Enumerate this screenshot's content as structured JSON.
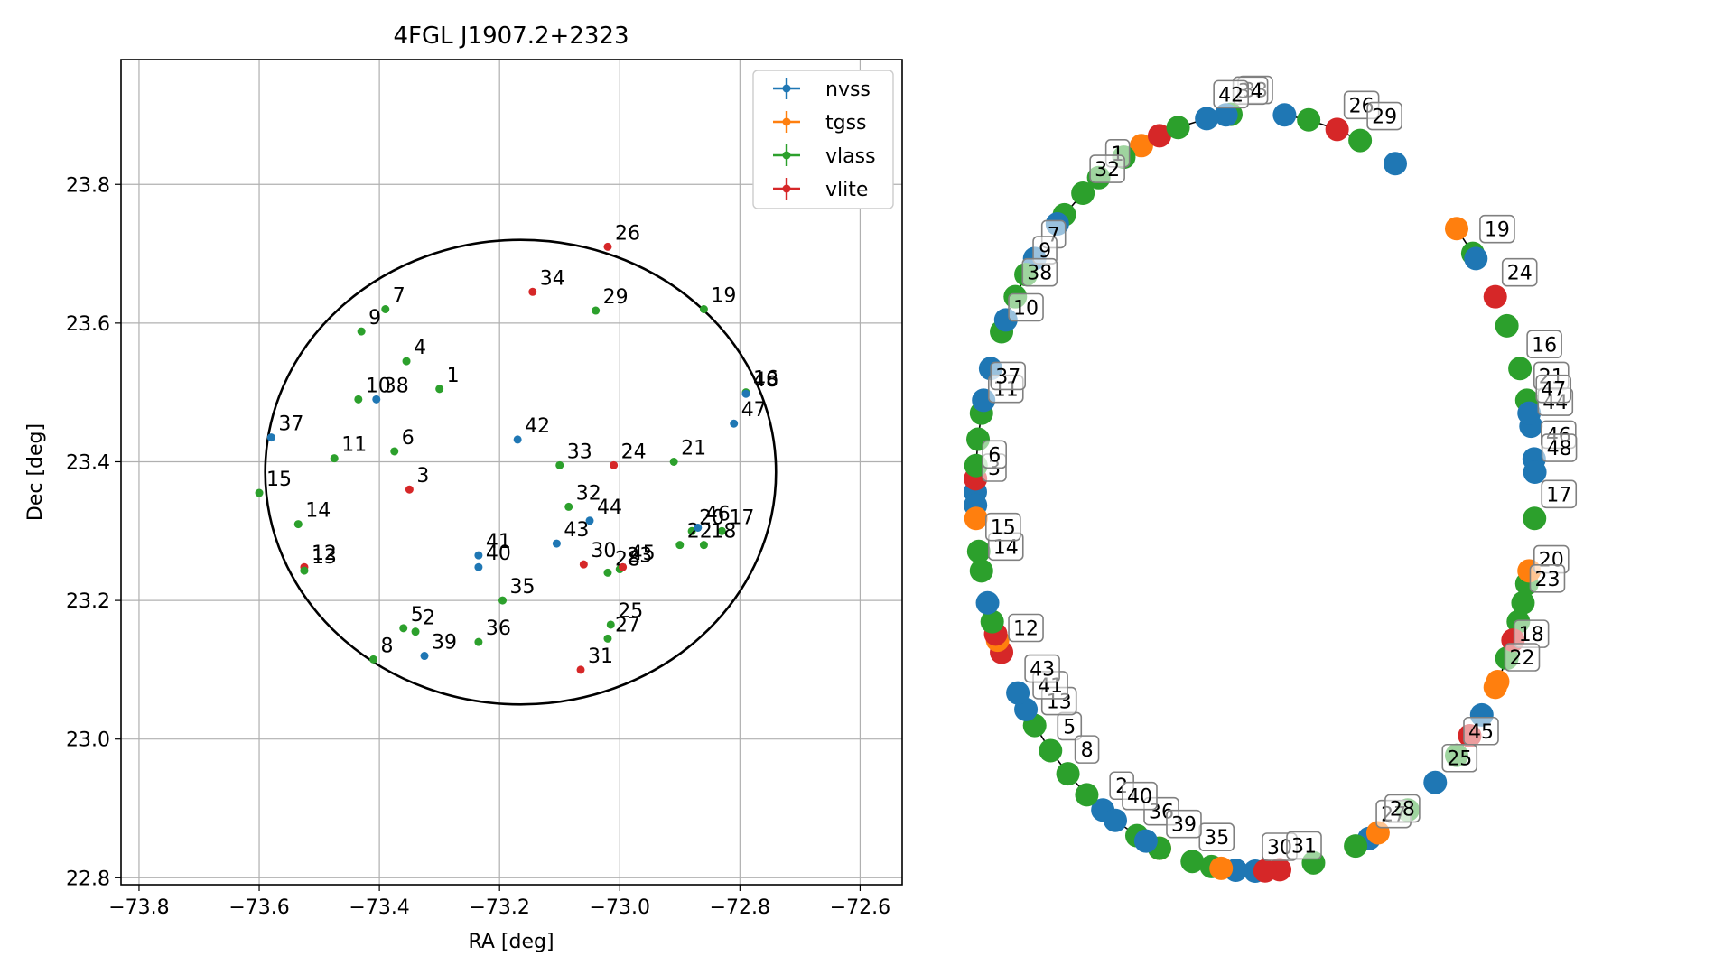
{
  "chart_data": [
    {
      "type": "scatter",
      "title": "4FGL J1907.2+2323",
      "xlabel": "RA [deg]",
      "ylabel": "Dec [deg]",
      "xlim": [
        -73.83,
        -72.53
      ],
      "ylim": [
        22.79,
        23.98
      ],
      "x_ticks": [
        -73.8,
        -73.6,
        -73.4,
        -73.2,
        -73.0,
        -72.8,
        -72.6
      ],
      "x_tick_labels": [
        "−73.8",
        "−73.6",
        "−73.4",
        "−73.2",
        "−73.0",
        "−72.8",
        "−72.6"
      ],
      "y_ticks": [
        22.8,
        23.0,
        23.2,
        23.4,
        23.6,
        23.8
      ],
      "y_tick_labels": [
        "22.8",
        "23.0",
        "23.2",
        "23.4",
        "23.6",
        "23.8"
      ],
      "grid": true,
      "legend_position": "top-right",
      "legend": [
        {
          "name": "nvss",
          "color": "#1f77b4"
        },
        {
          "name": "tgss",
          "color": "#ff7f0e"
        },
        {
          "name": "vlass",
          "color": "#2ca02c"
        },
        {
          "name": "vlite",
          "color": "#d62728"
        }
      ],
      "ellipse": {
        "center_ra": -73.165,
        "center_dec": 23.385,
        "semi_ra": 0.425,
        "semi_dec": 0.335
      },
      "points": [
        {
          "label": "1",
          "ra": -73.3,
          "dec": 23.505,
          "cat": "vlass"
        },
        {
          "label": "2",
          "ra": -73.34,
          "dec": 23.155,
          "cat": "vlass"
        },
        {
          "label": "3",
          "ra": -73.35,
          "dec": 23.36,
          "cat": "vlite"
        },
        {
          "label": "4",
          "ra": -73.355,
          "dec": 23.545,
          "cat": "vlass"
        },
        {
          "label": "5",
          "ra": -73.36,
          "dec": 23.16,
          "cat": "vlass"
        },
        {
          "label": "6",
          "ra": -73.375,
          "dec": 23.415,
          "cat": "vlass"
        },
        {
          "label": "7",
          "ra": -73.39,
          "dec": 23.62,
          "cat": "vlass"
        },
        {
          "label": "8",
          "ra": -73.41,
          "dec": 23.115,
          "cat": "vlass"
        },
        {
          "label": "9",
          "ra": -73.43,
          "dec": 23.588,
          "cat": "vlass"
        },
        {
          "label": "10",
          "ra": -73.435,
          "dec": 23.49,
          "cat": "vlass"
        },
        {
          "label": "11",
          "ra": -73.475,
          "dec": 23.405,
          "cat": "vlass"
        },
        {
          "label": "12",
          "ra": -73.525,
          "dec": 23.248,
          "cat": "vlite"
        },
        {
          "label": "13",
          "ra": -73.525,
          "dec": 23.243,
          "cat": "vlass"
        },
        {
          "label": "14",
          "ra": -73.535,
          "dec": 23.31,
          "cat": "vlass"
        },
        {
          "label": "15",
          "ra": -73.6,
          "dec": 23.355,
          "cat": "vlass"
        },
        {
          "label": "16",
          "ra": -72.79,
          "dec": 23.5,
          "cat": "vlass"
        },
        {
          "label": "17",
          "ra": -72.83,
          "dec": 23.3,
          "cat": "vlass"
        },
        {
          "label": "18",
          "ra": -72.86,
          "dec": 23.28,
          "cat": "vlass"
        },
        {
          "label": "19",
          "ra": -72.86,
          "dec": 23.62,
          "cat": "vlass"
        },
        {
          "label": "20",
          "ra": -72.88,
          "dec": 23.3,
          "cat": "vlass"
        },
        {
          "label": "21",
          "ra": -72.91,
          "dec": 23.4,
          "cat": "vlass"
        },
        {
          "label": "22",
          "ra": -72.9,
          "dec": 23.28,
          "cat": "vlass"
        },
        {
          "label": "23",
          "ra": -73.0,
          "dec": 23.245,
          "cat": "vlass"
        },
        {
          "label": "24",
          "ra": -73.01,
          "dec": 23.395,
          "cat": "vlite"
        },
        {
          "label": "25",
          "ra": -73.015,
          "dec": 23.165,
          "cat": "vlass"
        },
        {
          "label": "26",
          "ra": -73.02,
          "dec": 23.71,
          "cat": "vlite"
        },
        {
          "label": "27",
          "ra": -73.02,
          "dec": 23.145,
          "cat": "vlass"
        },
        {
          "label": "28",
          "ra": -73.02,
          "dec": 23.24,
          "cat": "vlass"
        },
        {
          "label": "29",
          "ra": -73.04,
          "dec": 23.618,
          "cat": "vlass"
        },
        {
          "label": "30",
          "ra": -73.06,
          "dec": 23.252,
          "cat": "vlite"
        },
        {
          "label": "31",
          "ra": -73.065,
          "dec": 23.1,
          "cat": "vlite"
        },
        {
          "label": "32",
          "ra": -73.085,
          "dec": 23.335,
          "cat": "vlass"
        },
        {
          "label": "33",
          "ra": -73.1,
          "dec": 23.395,
          "cat": "vlass"
        },
        {
          "label": "34",
          "ra": -73.145,
          "dec": 23.645,
          "cat": "vlite"
        },
        {
          "label": "35",
          "ra": -73.195,
          "dec": 23.2,
          "cat": "vlass"
        },
        {
          "label": "36",
          "ra": -73.235,
          "dec": 23.14,
          "cat": "vlass"
        },
        {
          "label": "37",
          "ra": -73.58,
          "dec": 23.435,
          "cat": "nvss"
        },
        {
          "label": "38",
          "ra": -73.405,
          "dec": 23.49,
          "cat": "nvss"
        },
        {
          "label": "39",
          "ra": -73.325,
          "dec": 23.12,
          "cat": "nvss"
        },
        {
          "label": "40",
          "ra": -73.235,
          "dec": 23.248,
          "cat": "nvss"
        },
        {
          "label": "41",
          "ra": -73.235,
          "dec": 23.265,
          "cat": "nvss"
        },
        {
          "label": "42",
          "ra": -73.17,
          "dec": 23.432,
          "cat": "nvss"
        },
        {
          "label": "43",
          "ra": -73.105,
          "dec": 23.282,
          "cat": "nvss"
        },
        {
          "label": "44",
          "ra": -73.05,
          "dec": 23.315,
          "cat": "nvss"
        },
        {
          "label": "45",
          "ra": -72.995,
          "dec": 23.248,
          "cat": "vlite"
        },
        {
          "label": "46",
          "ra": -72.87,
          "dec": 23.305,
          "cat": "nvss"
        },
        {
          "label": "47",
          "ra": -72.81,
          "dec": 23.455,
          "cat": "nvss"
        },
        {
          "label": "48",
          "ra": -72.79,
          "dec": 23.498,
          "cat": "nvss"
        }
      ]
    },
    {
      "type": "network",
      "nodes": [
        {
          "label": "1",
          "cat": "vlass",
          "angle": 236,
          "labeled": true
        },
        {
          "label": "2",
          "cat": "nvss",
          "angle": 123,
          "labeled": true
        },
        {
          "label": "3",
          "cat": "nvss",
          "angle": 180,
          "labeled": true
        },
        {
          "label": "5",
          "cat": "vlass",
          "angle": 137,
          "labeled": true
        },
        {
          "label": "6",
          "cat": "vlite",
          "angle": 182,
          "labeled": true
        },
        {
          "label": "7",
          "cat": "nvss",
          "angle": 218,
          "labeled": true
        },
        {
          "label": "8",
          "cat": "vlass",
          "angle": 132,
          "labeled": true
        },
        {
          "label": "9",
          "cat": "vlass",
          "angle": 215,
          "labeled": true
        },
        {
          "label": "10",
          "cat": "vlass",
          "angle": 205,
          "labeled": true
        },
        {
          "label": "11",
          "cat": "vlass",
          "angle": 192,
          "labeled": true
        },
        {
          "label": "12",
          "cat": "vlite",
          "angle": 155,
          "labeled": true
        },
        {
          "label": "13",
          "cat": "vlass",
          "angle": 142,
          "labeled": true
        },
        {
          "label": "14",
          "cat": "vlass",
          "angle": 168,
          "labeled": true
        },
        {
          "label": "15",
          "cat": "vlass",
          "angle": 171,
          "labeled": true
        },
        {
          "label": "16",
          "cat": "vlass",
          "angle": 341,
          "labeled": true
        },
        {
          "label": "17",
          "cat": "vlass",
          "angle": 4,
          "labeled": true
        },
        {
          "label": "18",
          "cat": "vlass",
          "angle": 26,
          "labeled": true
        },
        {
          "label": "19",
          "cat": "vlass",
          "angle": 321,
          "labeled": true
        },
        {
          "label": "20",
          "cat": "vlass",
          "angle": 14,
          "labeled": true
        },
        {
          "label": "21",
          "cat": "vlass",
          "angle": 346,
          "labeled": true
        },
        {
          "label": "22",
          "cat": "tgss",
          "angle": 30,
          "labeled": true
        },
        {
          "label": "23",
          "cat": "vlass",
          "angle": 17,
          "labeled": true
        },
        {
          "label": "24",
          "cat": "vlite",
          "angle": 329,
          "labeled": true
        },
        {
          "label": "25",
          "cat": "nvss",
          "angle": 50,
          "labeled": true
        },
        {
          "label": "26",
          "cat": "vlite",
          "angle": 287,
          "labeled": true
        },
        {
          "label": "27",
          "cat": "nvss",
          "angle": 66,
          "labeled": true
        },
        {
          "label": "28",
          "cat": "tgss",
          "angle": 64,
          "labeled": true
        },
        {
          "label": "29",
          "cat": "vlass",
          "angle": 292,
          "labeled": true
        },
        {
          "label": "30",
          "cat": "nvss",
          "angle": 90,
          "labeled": true
        },
        {
          "label": "31",
          "cat": "vlite",
          "angle": 85,
          "labeled": true
        },
        {
          "label": "32",
          "cat": "vlass",
          "angle": 232,
          "labeled": true
        },
        {
          "label": "33",
          "cat": "vlass",
          "angle": 265,
          "labeled": true
        },
        {
          "label": "34",
          "cat": "nvss",
          "angle": 264,
          "labeled": true
        },
        {
          "label": "35",
          "cat": "vlass",
          "angle": 103,
          "labeled": true
        },
        {
          "label": "36",
          "cat": "vlass",
          "angle": 115,
          "labeled": true
        },
        {
          "label": "37",
          "cat": "nvss",
          "angle": 194,
          "labeled": true
        },
        {
          "label": "38",
          "cat": "vlass",
          "angle": 211,
          "labeled": true
        },
        {
          "label": "39",
          "cat": "tgss",
          "angle": 110,
          "labeled": true
        },
        {
          "label": "40",
          "cat": "nvss",
          "angle": 120,
          "labeled": true
        },
        {
          "label": "41",
          "cat": "nvss",
          "angle": 145,
          "labeled": true
        },
        {
          "label": "42",
          "cat": "nvss",
          "angle": 260,
          "labeled": true
        },
        {
          "label": "43",
          "cat": "nvss",
          "angle": 148,
          "labeled": true
        },
        {
          "label": "44",
          "cat": "nvss",
          "angle": 350,
          "labeled": true
        },
        {
          "label": "45",
          "cat": "vlass",
          "angle": 44,
          "labeled": true
        },
        {
          "label": "46",
          "cat": "nvss",
          "angle": 355,
          "labeled": true
        },
        {
          "label": "47",
          "cat": "nvss",
          "angle": 348,
          "labeled": true
        },
        {
          "label": "48",
          "cat": "nvss",
          "angle": 357,
          "labeled": true
        },
        {
          "cat": "tgss",
          "angle": 246,
          "labeled": false
        },
        {
          "cat": "vlite",
          "angle": 250,
          "labeled": false
        },
        {
          "cat": "vlass",
          "angle": 254,
          "labeled": false
        },
        {
          "cat": "nvss",
          "angle": 276,
          "labeled": false
        },
        {
          "cat": "vlass",
          "angle": 281,
          "labeled": false
        },
        {
          "cat": "nvss",
          "angle": 300,
          "labeled": false
        },
        {
          "cat": "tgss",
          "angle": 316,
          "labeled": false
        },
        {
          "cat": "nvss",
          "angle": 322,
          "labeled": false
        },
        {
          "cat": "vlass",
          "angle": 334,
          "labeled": false
        },
        {
          "cat": "tgss",
          "angle": 12,
          "labeled": false
        },
        {
          "cat": "vlass",
          "angle": 20,
          "labeled": false
        },
        {
          "cat": "vlite",
          "angle": 23,
          "labeled": false
        },
        {
          "cat": "tgss",
          "angle": 31,
          "labeled": false
        },
        {
          "cat": "nvss",
          "angle": 36,
          "labeled": false
        },
        {
          "cat": "vlite",
          "angle": 40,
          "labeled": false
        },
        {
          "cat": "vlass",
          "angle": 57,
          "labeled": false
        },
        {
          "cat": "vlass",
          "angle": 69,
          "labeled": false
        },
        {
          "cat": "vlass",
          "angle": 78,
          "labeled": false
        },
        {
          "cat": "nvss",
          "angle": 94,
          "labeled": false
        },
        {
          "cat": "vlass",
          "angle": 99,
          "labeled": false
        },
        {
          "cat": "tgss",
          "angle": 97,
          "labeled": false
        },
        {
          "cat": "vlite",
          "angle": 88,
          "labeled": false
        },
        {
          "cat": "vlass",
          "angle": 110,
          "labeled": false
        },
        {
          "cat": "nvss",
          "angle": 113,
          "labeled": false
        },
        {
          "cat": "vlass",
          "angle": 127,
          "labeled": false
        },
        {
          "cat": "tgss",
          "angle": 157,
          "labeled": false
        },
        {
          "cat": "vlite",
          "angle": 158,
          "labeled": false
        },
        {
          "cat": "vlass",
          "angle": 160,
          "labeled": false
        },
        {
          "cat": "nvss",
          "angle": 163,
          "labeled": false
        },
        {
          "cat": "nvss",
          "angle": 178,
          "labeled": false
        },
        {
          "cat": "vlass",
          "angle": 184,
          "labeled": false
        },
        {
          "cat": "tgss",
          "angle": 176,
          "labeled": false
        },
        {
          "cat": "vlass",
          "angle": 188,
          "labeled": false
        },
        {
          "cat": "nvss",
          "angle": 199,
          "labeled": false
        },
        {
          "cat": "nvss",
          "angle": 207,
          "labeled": false
        },
        {
          "cat": "vlass",
          "angle": 227,
          "labeled": false
        },
        {
          "cat": "nvss",
          "angle": 225,
          "labeled": false
        },
        {
          "cat": "vlass",
          "angle": 242,
          "labeled": false
        }
      ]
    }
  ]
}
